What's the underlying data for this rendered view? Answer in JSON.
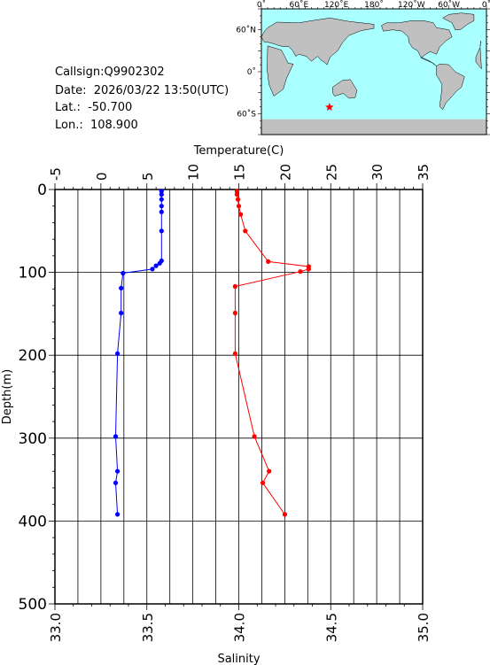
{
  "meta": {
    "callsign_line": "Callsign:Q9902302",
    "date_line": "Date:  2026/03/22 13:50(UTC)",
    "lat_line": "Lat.:  -50.700",
    "lon_line": "Lon.:  108.900"
  },
  "map": {
    "lon_labels": [
      "0˚",
      "60˚E",
      "120˚E",
      "180˚",
      "120˚W",
      "60˚W",
      "0˚"
    ],
    "lat_labels": [
      "60˚N",
      "0˚",
      "60˚S"
    ],
    "station_lat": -50.7,
    "station_lon": 108.9,
    "land_color": "#c0c0c0",
    "ocean_color": "#aaffff",
    "marker_color": "#ff0000",
    "marker_icon": "star"
  },
  "chart_data": {
    "type": "line",
    "top_axis_label": "Temperature(C)",
    "bottom_axis_label": "Salinity",
    "y_axis_label": "Depth(m)",
    "temperature_ticks": [
      "-5",
      "0",
      "5",
      "10",
      "15",
      "20",
      "25",
      "30",
      "35"
    ],
    "salinity_ticks": [
      "33.0",
      "33.5",
      "34.0",
      "34.5",
      "35.0"
    ],
    "depth_ticks": [
      "0",
      "100",
      "200",
      "300",
      "400",
      "500"
    ],
    "temperature_range": [
      -5,
      35
    ],
    "salinity_range": [
      33.0,
      35.0
    ],
    "depth_range": [
      0,
      500
    ],
    "grid": true,
    "series": [
      {
        "kind": "salinity",
        "color": "#0000ff",
        "depth": [
          2,
          6,
          12,
          20,
          27,
          50,
          86,
          89,
          92,
          96,
          101,
          119,
          149,
          198,
          298,
          340,
          354,
          392
        ],
        "values": [
          33.58,
          33.58,
          33.58,
          33.58,
          33.58,
          33.58,
          33.58,
          33.57,
          33.55,
          33.53,
          33.37,
          33.36,
          33.36,
          33.34,
          33.33,
          33.34,
          33.33,
          33.34
        ]
      },
      {
        "kind": "temperature",
        "color": "#ff0000",
        "depth": [
          2,
          6,
          12,
          20,
          30,
          50,
          87,
          93,
          96,
          99,
          117,
          149,
          198,
          298,
          340,
          354,
          392
        ],
        "values": [
          14.8,
          14.8,
          14.9,
          15.0,
          15.2,
          15.7,
          18.2,
          22.6,
          22.6,
          21.7,
          14.6,
          14.6,
          14.6,
          16.7,
          18.3,
          17.6,
          20.0
        ]
      }
    ]
  }
}
